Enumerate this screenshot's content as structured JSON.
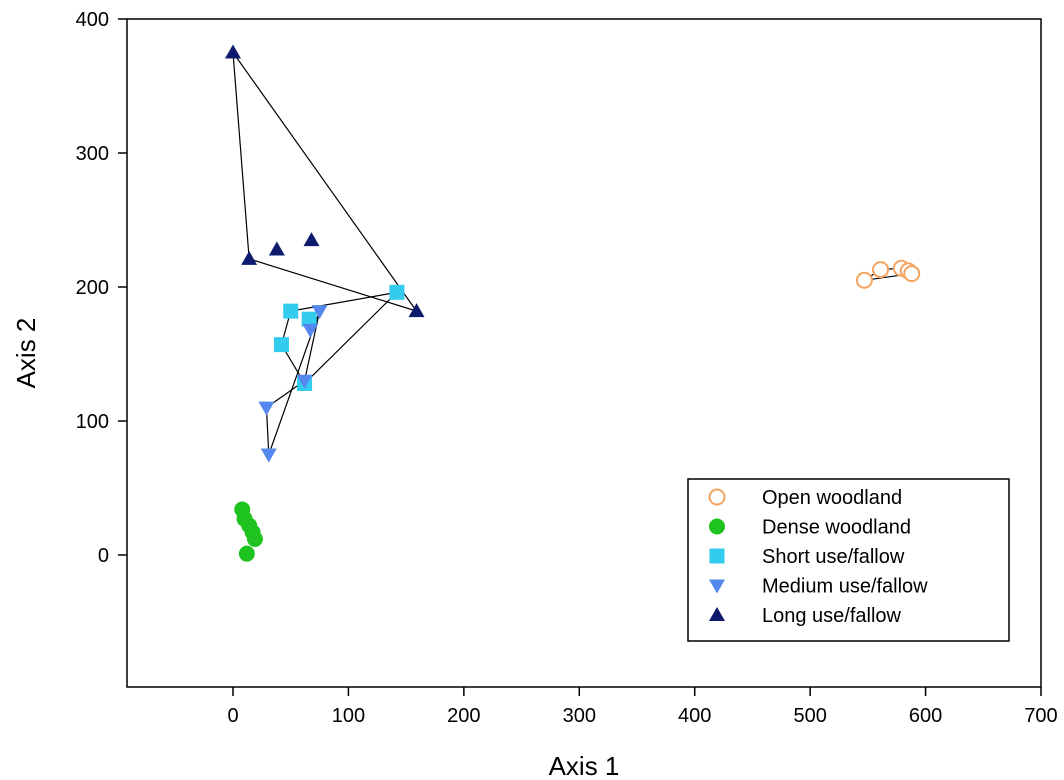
{
  "chart_data": {
    "type": "scatter",
    "xlabel": "Axis 1",
    "ylabel": "Axis 2",
    "xlim": [
      -90,
      700
    ],
    "ylim": [
      -100,
      400
    ],
    "x_ticks": [
      0,
      100,
      200,
      300,
      400,
      500,
      600,
      700
    ],
    "y_ticks": [
      0,
      100,
      200,
      300,
      400
    ],
    "x_tick_labels": [
      "0",
      "100",
      "200",
      "300",
      "400",
      "500",
      "600",
      "700"
    ],
    "y_tick_labels": [
      "0",
      "100",
      "200",
      "300",
      "400"
    ],
    "grid": false,
    "legend_position": "bottom-right",
    "series": [
      {
        "name": "Open woodland",
        "marker": "circle-open",
        "color": "#F4A460",
        "points": [
          [
            547,
            205
          ],
          [
            561,
            213
          ],
          [
            579,
            214
          ],
          [
            585,
            212
          ],
          [
            588,
            210
          ]
        ],
        "hull": [
          [
            547,
            205
          ],
          [
            561,
            213
          ],
          [
            579,
            214
          ],
          [
            588,
            210
          ],
          [
            547,
            205
          ]
        ]
      },
      {
        "name": "Dense woodland",
        "marker": "circle",
        "color": "#1FC31F",
        "points": [
          [
            8,
            34
          ],
          [
            10,
            27
          ],
          [
            14,
            22
          ],
          [
            17,
            17
          ],
          [
            19,
            12
          ],
          [
            12,
            1
          ]
        ],
        "hull": []
      },
      {
        "name": "Short use/fallow",
        "marker": "square",
        "color": "#33CCEE",
        "points": [
          [
            50,
            182
          ],
          [
            66,
            176
          ],
          [
            42,
            157
          ],
          [
            62,
            128
          ],
          [
            142,
            196
          ]
        ],
        "hull": [
          [
            50,
            182
          ],
          [
            42,
            157
          ],
          [
            62,
            128
          ],
          [
            142,
            196
          ],
          [
            50,
            182
          ]
        ]
      },
      {
        "name": "Medium use/fallow",
        "marker": "triangle-down",
        "color": "#5588EE",
        "points": [
          [
            75,
            182
          ],
          [
            67,
            168
          ],
          [
            62,
            130
          ],
          [
            29,
            110
          ],
          [
            31,
            75
          ]
        ],
        "hull": [
          [
            75,
            182
          ],
          [
            62,
            130
          ],
          [
            29,
            110
          ],
          [
            31,
            75
          ],
          [
            75,
            182
          ]
        ]
      },
      {
        "name": "Long use/fallow",
        "marker": "triangle-up",
        "color": "#0D1A6E",
        "points": [
          [
            0,
            375
          ],
          [
            14,
            221
          ],
          [
            38,
            228
          ],
          [
            68,
            235
          ],
          [
            159,
            182
          ]
        ],
        "hull": [
          [
            0,
            375
          ],
          [
            14,
            221
          ],
          [
            159,
            182
          ],
          [
            0,
            375
          ]
        ]
      }
    ]
  },
  "colors": {
    "axis": "#000000",
    "hull_line": "#000000"
  }
}
